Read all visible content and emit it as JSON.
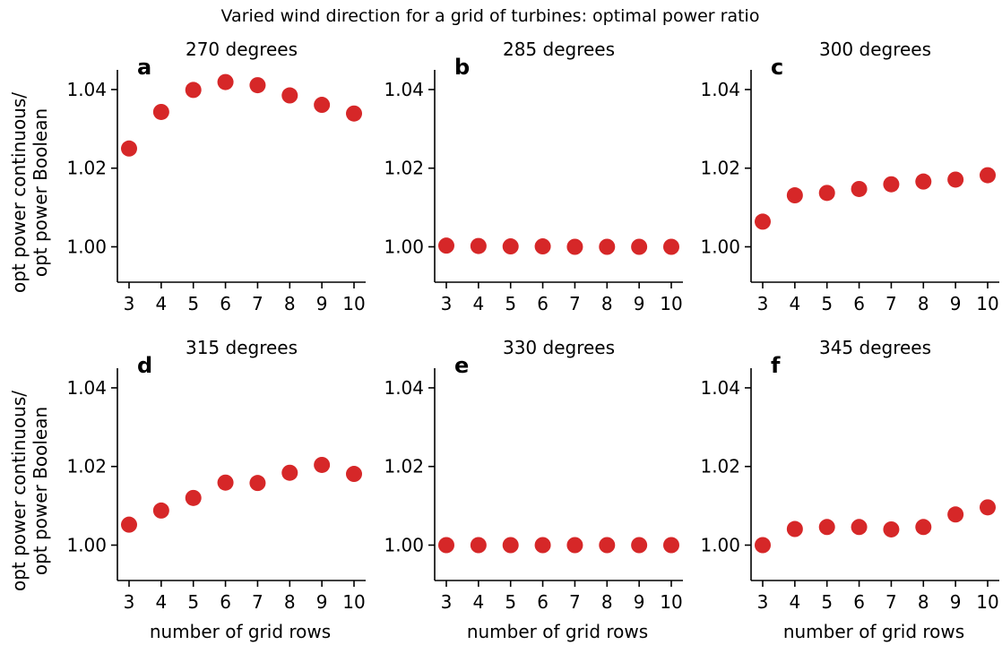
{
  "figure": {
    "title": "Varied wind direction for a grid of turbines: optimal power ratio",
    "ylabel_line1": "opt power continuous/",
    "ylabel_line2": "opt power Boolean",
    "xlabel": "number of grid rows"
  },
  "colors": {
    "marker": "#d62728",
    "axis": "#000000"
  },
  "chart_data": [
    {
      "type": "scatter",
      "letter": "a",
      "title": "270 degrees",
      "x": [
        3,
        4,
        5,
        6,
        7,
        8,
        9,
        10
      ],
      "y": [
        1.025,
        1.0343,
        1.0399,
        1.0419,
        1.0411,
        1.0385,
        1.0361,
        1.0339
      ],
      "xticks": [
        "3",
        "4",
        "5",
        "6",
        "7",
        "8",
        "9",
        "10"
      ],
      "yticks": [
        "1.00",
        "1.02",
        "1.04"
      ],
      "ylim": [
        0.991,
        1.045
      ],
      "xlabel": "",
      "ylabel": "opt power continuous/ opt power Boolean",
      "grid": false
    },
    {
      "type": "scatter",
      "letter": "b",
      "title": "285 degrees",
      "x": [
        3,
        4,
        5,
        6,
        7,
        8,
        9,
        10
      ],
      "y": [
        1.0003,
        1.0002,
        1.0001,
        1.0001,
        1.0,
        1.0,
        1.0,
        1.0
      ],
      "xticks": [
        "3",
        "4",
        "5",
        "6",
        "7",
        "8",
        "9",
        "10"
      ],
      "yticks": [
        "1.00",
        "1.02",
        "1.04"
      ],
      "ylim": [
        0.991,
        1.045
      ],
      "xlabel": "",
      "ylabel": "",
      "grid": false
    },
    {
      "type": "scatter",
      "letter": "c",
      "title": "300 degrees",
      "x": [
        3,
        4,
        5,
        6,
        7,
        8,
        9,
        10
      ],
      "y": [
        1.0064,
        1.0131,
        1.0137,
        1.0147,
        1.0159,
        1.0166,
        1.0171,
        1.0182
      ],
      "xticks": [
        "3",
        "4",
        "5",
        "6",
        "7",
        "8",
        "9",
        "10"
      ],
      "yticks": [
        "1.00",
        "1.02",
        "1.04"
      ],
      "ylim": [
        0.991,
        1.045
      ],
      "xlabel": "",
      "ylabel": "",
      "grid": false
    },
    {
      "type": "scatter",
      "letter": "d",
      "title": "315 degrees",
      "x": [
        3,
        4,
        5,
        6,
        7,
        8,
        9,
        10
      ],
      "y": [
        1.0052,
        1.0088,
        1.012,
        1.0159,
        1.0158,
        1.0184,
        1.0204,
        1.0181
      ],
      "xticks": [
        "3",
        "4",
        "5",
        "6",
        "7",
        "8",
        "9",
        "10"
      ],
      "yticks": [
        "1.00",
        "1.02",
        "1.04"
      ],
      "ylim": [
        0.991,
        1.045
      ],
      "xlabel": "number of grid rows",
      "ylabel": "opt power continuous/ opt power Boolean",
      "grid": false
    },
    {
      "type": "scatter",
      "letter": "e",
      "title": "330 degrees",
      "x": [
        3,
        4,
        5,
        6,
        7,
        8,
        9,
        10
      ],
      "y": [
        1.0,
        1.0,
        1.0,
        1.0,
        1.0,
        1.0,
        1.0,
        1.0
      ],
      "xticks": [
        "3",
        "4",
        "5",
        "6",
        "7",
        "8",
        "9",
        "10"
      ],
      "yticks": [
        "1.00",
        "1.02",
        "1.04"
      ],
      "ylim": [
        0.991,
        1.045
      ],
      "xlabel": "number of grid rows",
      "ylabel": "",
      "grid": false
    },
    {
      "type": "scatter",
      "letter": "f",
      "title": "345 degrees",
      "x": [
        3,
        4,
        5,
        6,
        7,
        8,
        9,
        10
      ],
      "y": [
        1.0,
        1.0041,
        1.0046,
        1.0046,
        1.004,
        1.0046,
        1.0078,
        1.0096
      ],
      "xticks": [
        "3",
        "4",
        "5",
        "6",
        "7",
        "8",
        "9",
        "10"
      ],
      "yticks": [
        "1.00",
        "1.02",
        "1.04"
      ],
      "ylim": [
        0.991,
        1.045
      ],
      "xlabel": "number of grid rows",
      "ylabel": "",
      "grid": false
    }
  ]
}
